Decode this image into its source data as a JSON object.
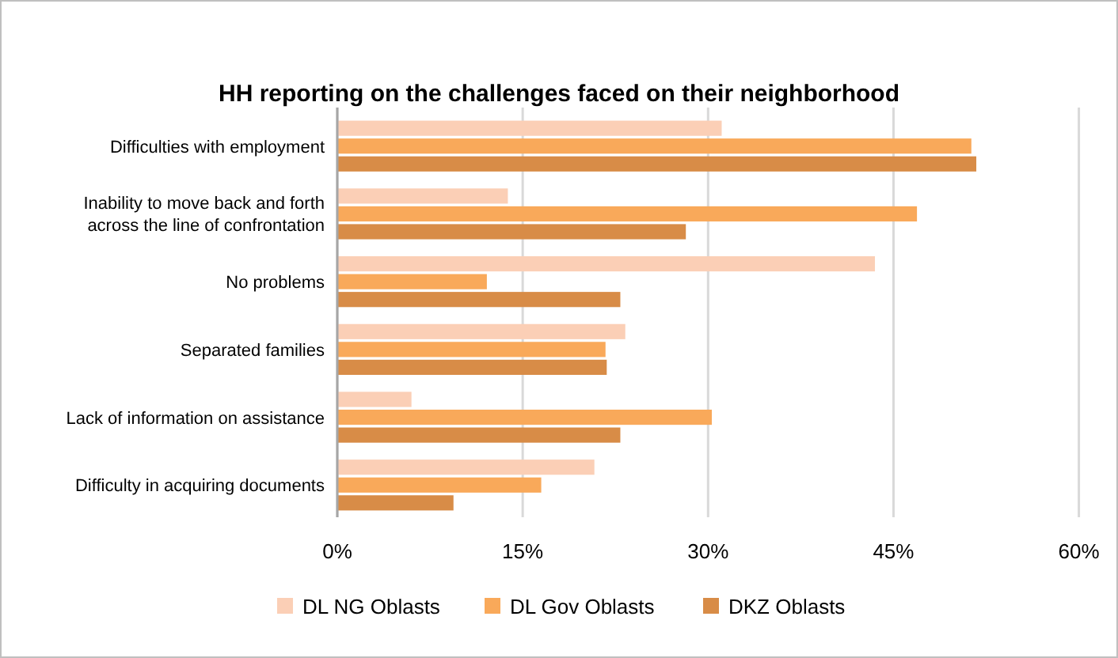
{
  "chart_data": {
    "type": "bar",
    "orientation": "horizontal",
    "title": "HH reporting on the challenges faced on their neighborhood",
    "categories": [
      "Difficulties with employment",
      "Inability to move back and forth across the line of confrontation",
      "No problems",
      "Separated families",
      "Lack of information on assistance",
      "Difficulty in acquiring documents"
    ],
    "series": [
      {
        "name": "DL NG Oblasts",
        "color": "#fbcfb6",
        "values": [
          31.1,
          13.8,
          43.5,
          23.3,
          6.0,
          20.8
        ]
      },
      {
        "name": "DL Gov Oblasts",
        "color": "#f9a95a",
        "values": [
          51.3,
          46.9,
          12.1,
          21.7,
          30.3,
          16.5
        ]
      },
      {
        "name": "DKZ Oblasts",
        "color": "#d88c47",
        "values": [
          51.7,
          28.2,
          22.9,
          21.8,
          22.9,
          9.4
        ]
      }
    ],
    "xlim": [
      0,
      60
    ],
    "xticks": [
      {
        "value": 0,
        "label": "0%"
      },
      {
        "value": 15,
        "label": "15%"
      },
      {
        "value": 30,
        "label": "30%"
      },
      {
        "value": 45,
        "label": "45%"
      },
      {
        "value": 60,
        "label": "60%"
      }
    ],
    "grid": "x",
    "legend": "bottom"
  }
}
